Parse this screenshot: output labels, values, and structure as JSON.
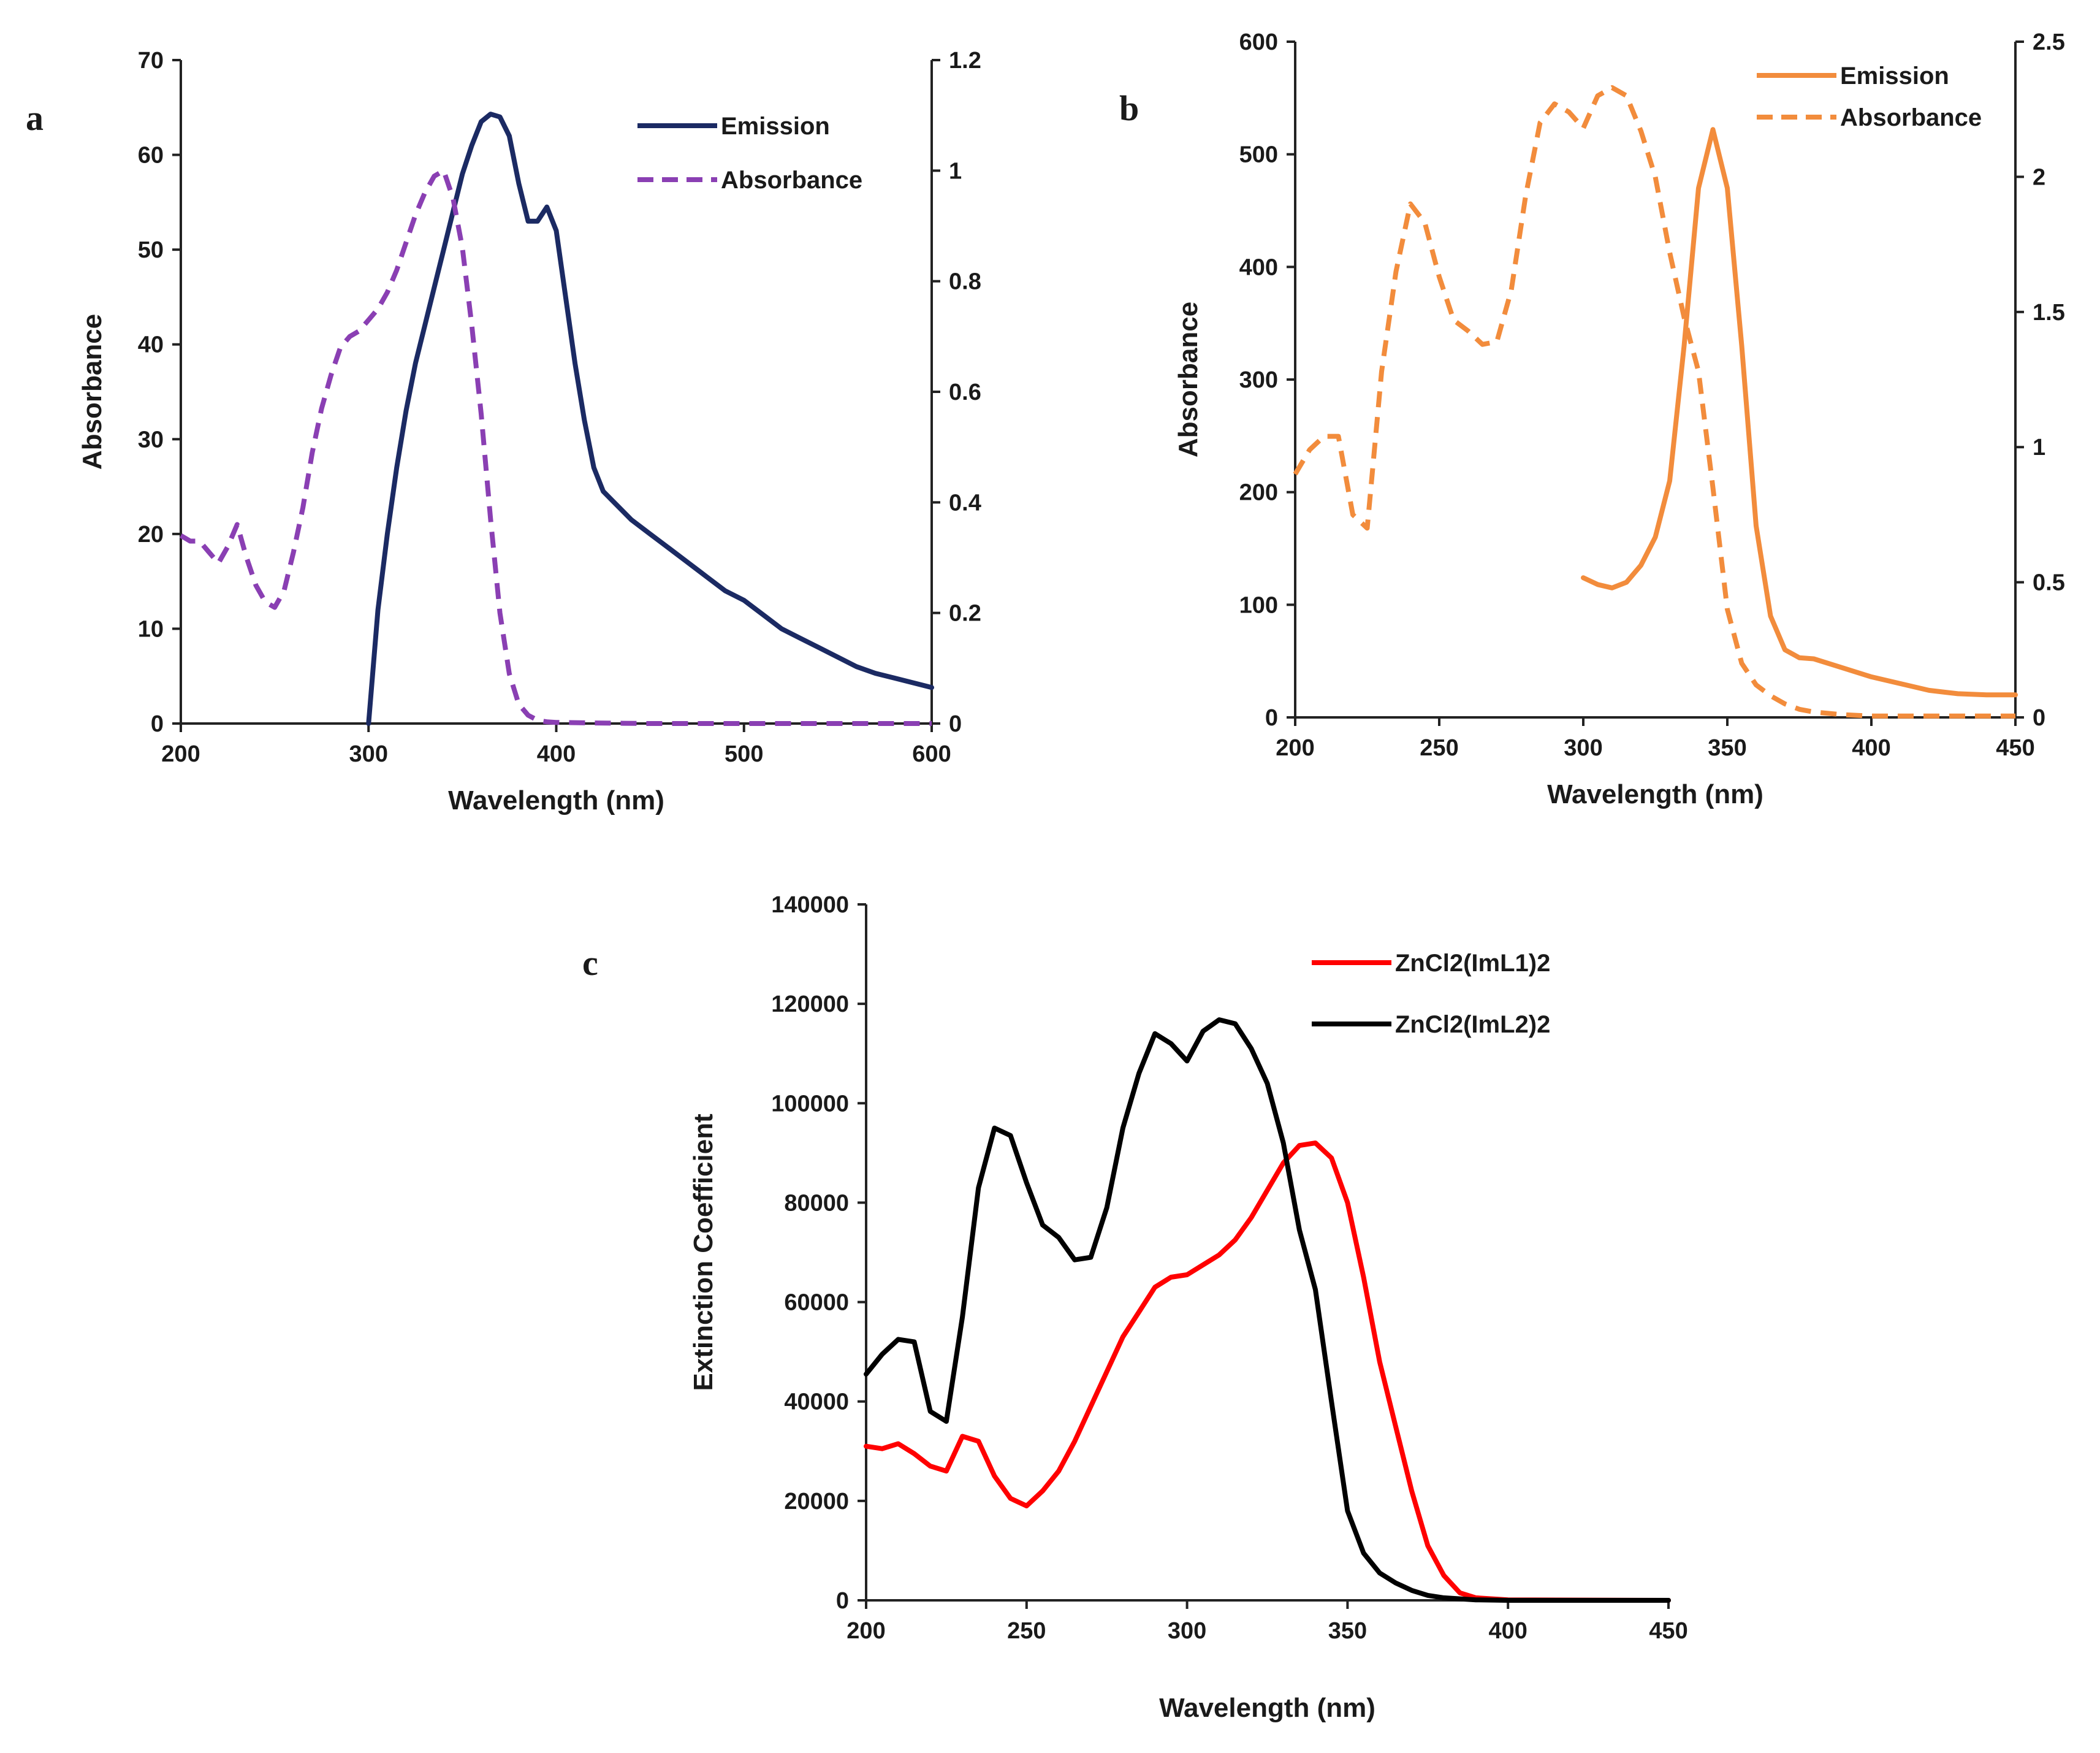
{
  "chart_data": [
    {
      "panel": "a",
      "type": "line",
      "xlabel": "Wavelength (nm)",
      "ylabel": "Absorbance",
      "xlim": [
        200,
        600
      ],
      "xticks": [
        200,
        300,
        400,
        500,
        600
      ],
      "ylim": [
        0,
        70
      ],
      "yticks": [
        0,
        10,
        20,
        30,
        40,
        50,
        60,
        70
      ],
      "y2lim": [
        0,
        1.2
      ],
      "y2ticks": [
        "0",
        "0.2",
        "0.4",
        "0.6",
        "0.8",
        "1",
        "1.2"
      ],
      "legend_position": "top-right",
      "series": [
        {
          "name": "Emission",
          "axis": "left",
          "color": "#1b2a63",
          "dash": "solid",
          "x": [
            300,
            305,
            310,
            315,
            320,
            325,
            330,
            335,
            340,
            345,
            350,
            355,
            360,
            365,
            370,
            375,
            380,
            385,
            390,
            395,
            400,
            405,
            410,
            415,
            420,
            425,
            430,
            440,
            450,
            460,
            470,
            480,
            490,
            500,
            510,
            520,
            530,
            540,
            550,
            560,
            570,
            580,
            590,
            600
          ],
          "y": [
            0,
            12,
            20,
            27,
            33,
            38,
            42,
            46,
            50,
            54,
            58,
            61,
            63.5,
            64.3,
            64,
            62,
            57,
            53,
            53,
            54.5,
            52,
            45,
            38,
            32,
            27,
            24.5,
            23.5,
            21.5,
            20,
            18.5,
            17,
            15.5,
            14,
            13,
            11.5,
            10,
            9,
            8,
            7,
            6,
            5.3,
            4.8,
            4.3,
            3.8
          ]
        },
        {
          "name": "Absorbance",
          "axis": "right",
          "color": "#8a3fb3",
          "dash": "dashed",
          "x": [
            200,
            205,
            210,
            215,
            220,
            225,
            230,
            235,
            240,
            245,
            250,
            255,
            260,
            265,
            270,
            275,
            280,
            285,
            290,
            295,
            300,
            305,
            310,
            315,
            320,
            325,
            330,
            335,
            340,
            345,
            350,
            355,
            360,
            365,
            370,
            375,
            380,
            385,
            390,
            395,
            400,
            420,
            450,
            500,
            550,
            600
          ],
          "y": [
            0.34,
            0.33,
            0.33,
            0.31,
            0.29,
            0.32,
            0.36,
            0.3,
            0.25,
            0.22,
            0.21,
            0.24,
            0.31,
            0.39,
            0.49,
            0.57,
            0.63,
            0.68,
            0.7,
            0.71,
            0.73,
            0.75,
            0.78,
            0.82,
            0.87,
            0.92,
            0.96,
            0.99,
            1.0,
            0.95,
            0.86,
            0.72,
            0.56,
            0.37,
            0.2,
            0.09,
            0.035,
            0.015,
            0.006,
            0.003,
            0.002,
            0.001,
            0.0,
            0.0,
            0.0,
            0.0
          ]
        }
      ]
    },
    {
      "panel": "b",
      "type": "line",
      "xlabel": "Wavelength (nm)",
      "ylabel": "Absorbance",
      "xlim": [
        200,
        450
      ],
      "xticks": [
        200,
        250,
        300,
        350,
        400,
        450
      ],
      "ylim": [
        0,
        600
      ],
      "yticks": [
        0,
        100,
        200,
        300,
        400,
        500,
        600
      ],
      "y2lim": [
        0,
        2.5
      ],
      "y2ticks": [
        "0",
        "0.5",
        "1",
        "1.5",
        "2",
        "2.5"
      ],
      "legend_position": "top-right",
      "series": [
        {
          "name": "Emission",
          "axis": "left",
          "color": "#f28c3c",
          "dash": "solid",
          "x": [
            300,
            305,
            310,
            315,
            320,
            325,
            330,
            335,
            340,
            345,
            350,
            355,
            360,
            365,
            370,
            375,
            380,
            390,
            400,
            410,
            420,
            430,
            440,
            450
          ],
          "y": [
            124,
            118,
            115,
            120,
            135,
            160,
            210,
            330,
            470,
            522,
            470,
            330,
            170,
            90,
            60,
            53,
            52,
            44,
            36,
            30,
            24,
            21,
            20,
            20
          ]
        },
        {
          "name": "Absorbance",
          "axis": "right",
          "color": "#f28c3c",
          "dash": "dashed",
          "x": [
            200,
            205,
            210,
            215,
            220,
            225,
            230,
            235,
            240,
            245,
            250,
            255,
            260,
            265,
            270,
            275,
            280,
            285,
            290,
            295,
            300,
            305,
            310,
            315,
            320,
            325,
            330,
            335,
            340,
            345,
            350,
            355,
            360,
            365,
            370,
            375,
            380,
            390,
            400,
            420,
            450
          ],
          "y": [
            0.9,
            0.99,
            1.04,
            1.04,
            0.75,
            0.7,
            1.28,
            1.65,
            1.9,
            1.83,
            1.63,
            1.47,
            1.43,
            1.38,
            1.39,
            1.58,
            1.93,
            2.2,
            2.27,
            2.24,
            2.18,
            2.3,
            2.33,
            2.3,
            2.17,
            2.0,
            1.72,
            1.48,
            1.28,
            0.85,
            0.4,
            0.2,
            0.12,
            0.08,
            0.05,
            0.03,
            0.02,
            0.01,
            0.005,
            0.005,
            0.005
          ]
        }
      ]
    },
    {
      "panel": "c",
      "type": "line",
      "xlabel": "Wavelength (nm)",
      "ylabel": "Extinction Coefficient",
      "xlim": [
        200,
        450
      ],
      "xticks": [
        200,
        250,
        300,
        350,
        400,
        450
      ],
      "ylim": [
        0,
        140000
      ],
      "yticks": [
        0,
        20000,
        40000,
        60000,
        80000,
        100000,
        120000,
        140000
      ],
      "legend_position": "top-right",
      "series": [
        {
          "name": "ZnCl2(ImL1)2",
          "axis": "left",
          "color": "#ff0000",
          "dash": "solid",
          "x": [
            200,
            205,
            210,
            215,
            220,
            225,
            230,
            235,
            240,
            245,
            250,
            255,
            260,
            265,
            270,
            275,
            280,
            285,
            290,
            295,
            300,
            305,
            310,
            315,
            320,
            325,
            330,
            335,
            340,
            345,
            350,
            355,
            360,
            365,
            370,
            375,
            380,
            385,
            390,
            400,
            450
          ],
          "y": [
            31000,
            30500,
            31500,
            29500,
            27000,
            26000,
            33000,
            32000,
            25000,
            20500,
            19000,
            22000,
            26000,
            32000,
            39000,
            46000,
            53000,
            58000,
            63000,
            65000,
            65500,
            67500,
            69500,
            72500,
            77000,
            82500,
            88000,
            91500,
            92000,
            89000,
            80000,
            65000,
            48000,
            35000,
            22000,
            11000,
            5000,
            1500,
            500,
            100,
            0
          ]
        },
        {
          "name": "ZnCl2(ImL2)2",
          "axis": "left",
          "color": "#000000",
          "dash": "solid",
          "x": [
            200,
            205,
            210,
            215,
            220,
            225,
            230,
            235,
            240,
            245,
            250,
            255,
            260,
            265,
            270,
            275,
            280,
            285,
            290,
            295,
            300,
            305,
            310,
            315,
            320,
            325,
            330,
            335,
            340,
            345,
            350,
            355,
            360,
            365,
            370,
            375,
            380,
            390,
            400,
            450
          ],
          "y": [
            45500,
            49500,
            52500,
            52000,
            38000,
            36000,
            57000,
            83000,
            95000,
            93500,
            84000,
            75500,
            73000,
            68500,
            69000,
            79000,
            95000,
            106000,
            114000,
            112000,
            108500,
            114500,
            116800,
            116000,
            111000,
            104000,
            92000,
            74500,
            62500,
            40000,
            18000,
            9500,
            5500,
            3500,
            2000,
            1000,
            500,
            100,
            0,
            0
          ]
        }
      ]
    }
  ],
  "panel_labels": {
    "a": "a",
    "b": "b",
    "c": "c"
  }
}
